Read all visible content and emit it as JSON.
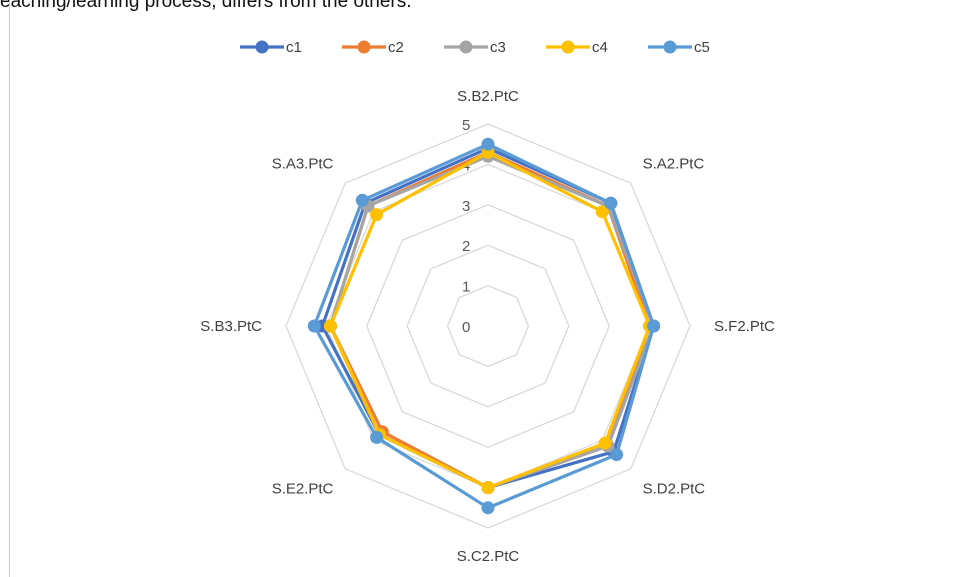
{
  "header": {
    "text": "eaching/learning process, differs from the others."
  },
  "chart_data": {
    "type": "radar",
    "categories": [
      "S.B2.PtC",
      "S.A2.PtC",
      "S.F2.PtC",
      "S.D2.PtC",
      "S.C2.PtC",
      "S.E2.PtC",
      "S.B3.PtC",
      "S.A3.PtC"
    ],
    "rlim": [
      0,
      5
    ],
    "ticks": [
      "0",
      "1",
      "2",
      "3",
      "4",
      "5"
    ],
    "legend_position": "top",
    "grid": true,
    "series": [
      {
        "name": "c1",
        "color": "#4472C4",
        "values": [
          4.4,
          4.3,
          4.1,
          4.4,
          4.0,
          3.8,
          4.1,
          4.3
        ]
      },
      {
        "name": "c2",
        "color": "#ED7D31",
        "values": [
          4.3,
          4.2,
          4.0,
          4.2,
          4.0,
          3.7,
          3.9,
          4.2
        ]
      },
      {
        "name": "c3",
        "color": "#A5A5A5",
        "values": [
          4.2,
          4.2,
          4.1,
          4.2,
          4.0,
          3.8,
          3.9,
          4.2
        ]
      },
      {
        "name": "c4",
        "color": "#FFC000",
        "values": [
          4.3,
          4.0,
          4.0,
          4.1,
          4.0,
          3.8,
          3.9,
          3.9
        ]
      },
      {
        "name": "c5",
        "color": "#5B9BD5",
        "values": [
          4.5,
          4.3,
          4.1,
          4.5,
          4.5,
          3.9,
          4.3,
          4.4
        ]
      }
    ]
  }
}
